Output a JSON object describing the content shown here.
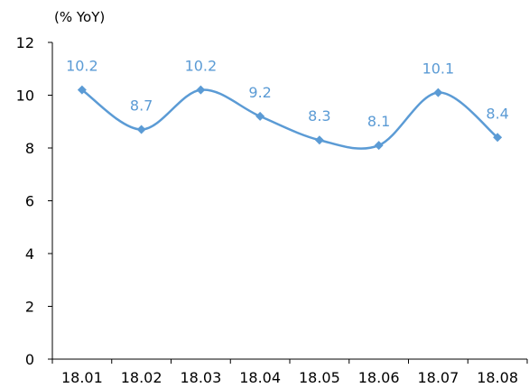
{
  "chart_data": {
    "type": "line",
    "unit_label": "(% YoY)",
    "categories": [
      "18.01",
      "18.02",
      "18.03",
      "18.04",
      "18.05",
      "18.06",
      "18.07",
      "18.08"
    ],
    "series": [
      {
        "values": [
          10.2,
          8.7,
          10.2,
          9.2,
          8.3,
          8.1,
          10.1,
          8.4
        ]
      }
    ],
    "data_labels": [
      "10.2",
      "8.7",
      "10.2",
      "9.2",
      "8.3",
      "8.1",
      "10.1",
      "8.4"
    ],
    "yticks": [
      "0",
      "2",
      "4",
      "6",
      "8",
      "10",
      "12"
    ],
    "ylim": [
      0,
      12
    ],
    "grid": false,
    "smooth": true,
    "marker": "diamond",
    "colors": {
      "line": "#5B9BD5",
      "label": "#5B9BD5",
      "axis": "#000000"
    }
  }
}
